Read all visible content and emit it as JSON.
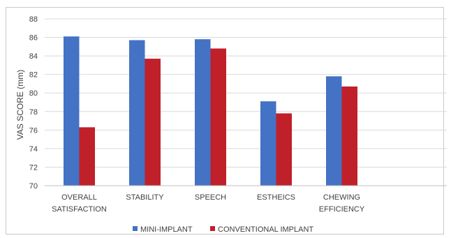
{
  "chart_data": {
    "type": "bar",
    "ylabel": "VAS SCORE (mm)",
    "xlabel": "",
    "title": "",
    "ylim": [
      70,
      88
    ],
    "yticks": [
      70,
      72,
      74,
      76,
      78,
      80,
      82,
      84,
      86,
      88
    ],
    "ytick_labels": [
      "70",
      "72",
      "74",
      "76",
      "78",
      "80",
      "82",
      "84",
      "86",
      "88"
    ],
    "grid": true,
    "legend_position": "bottom",
    "categories": [
      [
        "OVERALL",
        "SATISFACTION"
      ],
      [
        "STABILITY"
      ],
      [
        "SPEECH"
      ],
      [
        "ESTHEICS"
      ],
      [
        "CHEWING",
        "EFFICIENCY"
      ]
    ],
    "series": [
      {
        "name": "MINI-IMPLANT",
        "color": "#4472C4",
        "values": [
          86.1,
          85.7,
          85.8,
          79.1,
          81.8
        ]
      },
      {
        "name": "CONVENTIONAL IMPLANT",
        "color": "#C0202A",
        "values": [
          76.3,
          83.7,
          84.8,
          77.8,
          80.7
        ]
      }
    ]
  }
}
